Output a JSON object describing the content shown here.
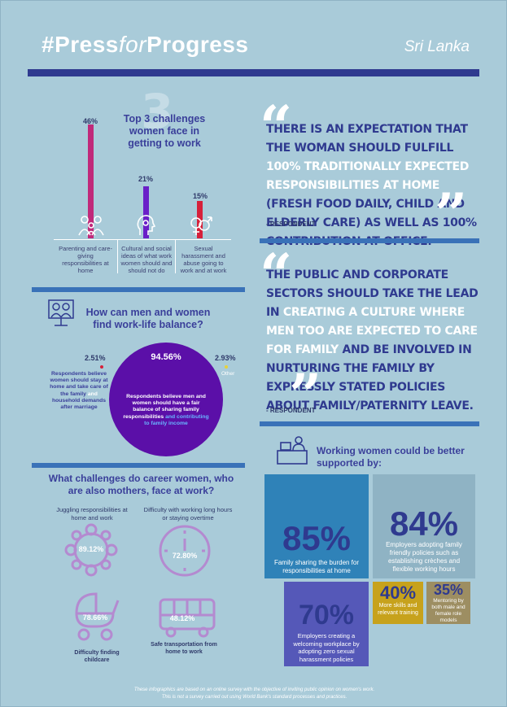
{
  "header": {
    "title_press": "#Press",
    "title_for": "for",
    "title_progress": "Progress",
    "country": "Sri Lanka"
  },
  "challenges": {
    "title": "Top 3 challenges women face in getting to work",
    "items": [
      {
        "pct": "46%",
        "value": 46,
        "label": "Parenting and care-giving responsibilities at home",
        "color": "#c0297a"
      },
      {
        "pct": "21%",
        "value": 21,
        "label": "Cultural and social ideas of what work women should and should not do",
        "color": "#6a1fc8"
      },
      {
        "pct": "15%",
        "value": 15,
        "label": "Sexual harassment and abuse going to work and at work",
        "color": "#d6203a"
      }
    ]
  },
  "balance": {
    "title": "How can men and women find work-life balance?",
    "main_pct": "94.56%",
    "main_label_a": "Respondents believe men and women should have a fair balance of sharing family responsibilities",
    "main_label_b": "and contributing to family income",
    "left_pct": "2.51%",
    "left_label_a": "Respondents believe women should stay at home and take care of the family",
    "left_label_b": "and",
    "left_label_c": "household demands after marriage",
    "right_pct": "2.93%",
    "right_label": "Other"
  },
  "mothers": {
    "title": "What challenges do career women, who are also mothers, face at work?",
    "items": [
      {
        "label": "Juggling responsibilities at home and work",
        "pct": "89.12%"
      },
      {
        "label": "Difficulty with working long hours or staying overtime",
        "pct": "72.80%"
      },
      {
        "label": "Difficulty finding childcare",
        "pct": "78.66%"
      },
      {
        "label": "Safe transportation from home to work",
        "pct": "48.12%"
      }
    ]
  },
  "quote1": {
    "parts": [
      {
        "t": "THERE IS AN EXPECTATION THAT THE WOMAN SHOULD FULFILL ",
        "hl": false
      },
      {
        "t": "100% TRADITIONALLY EXPECTED RESPONSIBILITIES AT HOME",
        "hl": true
      },
      {
        "t": " (FRESH FOOD DAILY, CHILD AND ELDERLY CARE) AS WELL AS 100% CONTRIBUTION AT OFFICE.",
        "hl": false
      }
    ],
    "source": "- RESPONDENT"
  },
  "quote2": {
    "parts": [
      {
        "t": "THE PUBLIC AND CORPORATE SECTORS SHOULD TAKE THE LEAD IN ",
        "hl": false
      },
      {
        "t": "CREATING A CULTURE WHERE MEN TOO ARE EXPECTED TO CARE FOR FAMILY",
        "hl": true
      },
      {
        "t": " AND BE INVOLVED IN NURTURING THE FAMILY BY EXPRESSLY STATED POLICIES ABOUT FAMILY/PATERNITY LEAVE.",
        "hl": false
      }
    ],
    "source": "- RESPONDENT"
  },
  "support": {
    "title": "Working women could be better supported by:",
    "tiles": [
      {
        "pct": "85%",
        "text": "Family sharing the burden for responsibilities at home"
      },
      {
        "pct": "84%",
        "text": "Employers adopting family friendly policies such as establishing crèches and flexible working hours"
      },
      {
        "pct": "70%",
        "text": "Employers creating a welcoming workplace by adopting zero sexual harassment policies"
      },
      {
        "pct": "40%",
        "text": "More skills and relevant training"
      },
      {
        "pct": "35%",
        "text": "Mentoring by both male and female role models"
      }
    ]
  },
  "footer": {
    "line1": "These infographics are based on an online survey with the objective of inviting public opinion on women's work.",
    "line2": "This is not a survey carried out using World Bank's standard processes and practices."
  },
  "colors": {
    "background": "#a9cbd9",
    "navy": "#2f3a8f",
    "accent_blue": "#3a72b8",
    "purple": "#5b0fa8"
  }
}
